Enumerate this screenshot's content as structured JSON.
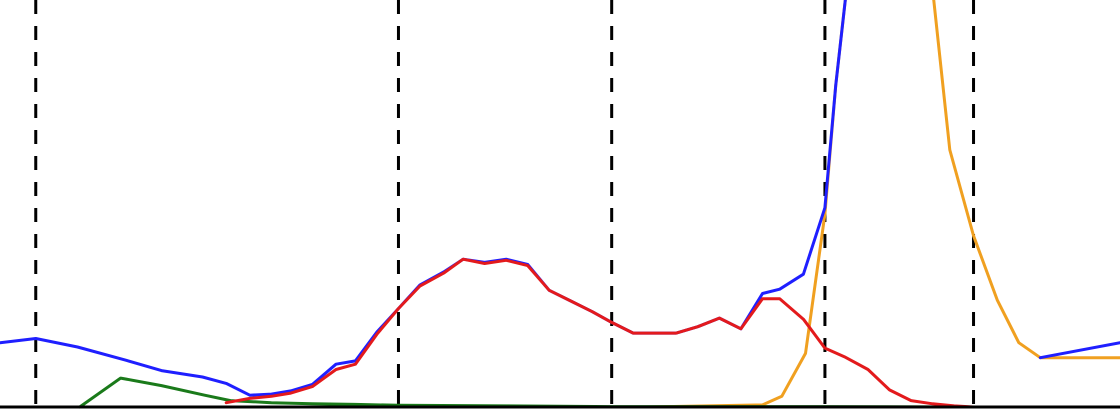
{
  "chart_data": {
    "type": "line",
    "title": "",
    "xlabel": "",
    "ylabel": "",
    "xlim": [
      0,
      52
    ],
    "ylim": [
      0,
      19
    ],
    "grid": false,
    "vlines": [
      1.66,
      18.5,
      28.4,
      38.3,
      45.2
    ],
    "colors": {
      "blue": "#1f1fff",
      "red": "#e31a1c",
      "green": "#1a7a1a",
      "orange": "#f0a020",
      "axis": "#000000",
      "vline": "#000000"
    },
    "series": [
      {
        "color_key": "blue",
        "x": [
          0.0,
          1.66,
          3.6,
          5.8,
          7.5,
          9.4,
          10.5,
          11.6,
          12.6,
          13.5,
          14.5,
          15.6,
          16.5,
          17.5,
          18.5,
          19.5,
          20.6,
          21.5,
          22.5,
          23.5,
          24.5,
          25.5,
          26.5,
          27.5,
          28.4,
          29.4,
          30.4,
          31.4,
          32.4,
          33.4,
          34.4,
          35.4,
          36.2,
          37.3,
          38.3,
          38.8,
          39.3,
          40.3
        ],
        "y": [
          3.0,
          3.2,
          2.8,
          2.2,
          1.7,
          1.4,
          1.1,
          0.55,
          0.6,
          0.75,
          1.05,
          2.0,
          2.15,
          3.5,
          4.6,
          5.7,
          6.3,
          6.9,
          6.75,
          6.9,
          6.65,
          5.45,
          4.95,
          4.45,
          3.95,
          3.45,
          3.45,
          3.45,
          3.75,
          4.15,
          3.65,
          5.3,
          5.5,
          6.2,
          9.3,
          15.0,
          19.5,
          19.5
        ]
      },
      {
        "color_key": "red",
        "x": [
          10.5,
          11.6,
          12.6,
          13.5,
          14.5,
          15.6,
          16.5,
          17.5,
          18.5,
          19.5,
          20.6,
          21.5,
          22.5,
          23.5,
          24.5,
          25.5,
          26.5,
          27.5,
          28.4,
          29.4,
          30.4,
          31.4,
          32.4,
          33.4,
          34.4,
          35.4,
          36.2,
          37.3,
          38.3,
          39.2,
          40.3,
          41.3,
          42.3,
          43.3,
          44.3,
          45.2
        ],
        "y": [
          0.2,
          0.4,
          0.5,
          0.65,
          0.95,
          1.75,
          2.0,
          3.4,
          4.6,
          5.65,
          6.25,
          6.9,
          6.7,
          6.85,
          6.6,
          5.45,
          4.95,
          4.45,
          3.95,
          3.45,
          3.45,
          3.45,
          3.75,
          4.15,
          3.65,
          5.05,
          5.05,
          4.1,
          2.75,
          2.35,
          1.75,
          0.8,
          0.3,
          0.15,
          0.05,
          0.0
        ]
      },
      {
        "color_key": "green",
        "x": [
          3.7,
          5.6,
          7.5,
          9.5,
          10.7,
          12.6,
          14.5,
          16.5,
          18.5,
          23.5,
          28.4,
          33.4,
          38.3,
          45.2,
          52.0
        ],
        "y": [
          0.0,
          1.35,
          1.0,
          0.55,
          0.3,
          0.2,
          0.15,
          0.12,
          0.08,
          0.05,
          0.02,
          0.02,
          0.02,
          0.0,
          0.0
        ]
      },
      {
        "color_key": "orange",
        "x": [
          0.0,
          10.0,
          20.0,
          30.0,
          35.4,
          36.3,
          37.4,
          38.3,
          38.8,
          39.3,
          43.3,
          44.1,
          45.2,
          46.3,
          47.3,
          48.3,
          52.0
        ],
        "y": [
          0.0,
          0.0,
          0.0,
          0.0,
          0.1,
          0.5,
          2.5,
          9.0,
          15.0,
          19.5,
          19.5,
          12.0,
          8.0,
          5.0,
          3.0,
          2.3,
          2.3
        ]
      },
      {
        "color_key": "blue",
        "x": [
          48.3,
          52.0
        ],
        "y": [
          2.3,
          3.0
        ]
      }
    ]
  }
}
